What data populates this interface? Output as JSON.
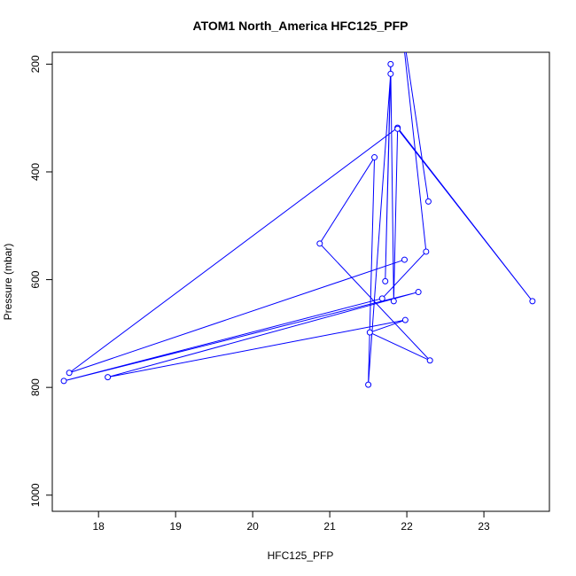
{
  "chart_data": {
    "type": "line",
    "title": "ATOM1 North_America HFC125_PFP",
    "xlabel": "HFC125_PFP",
    "ylabel": "Pressure (mbar)",
    "xlim": [
      17.4,
      23.85
    ],
    "ylim": [
      1030,
      178
    ],
    "y_reversed": true,
    "x_ticks": [
      18,
      19,
      20,
      21,
      22,
      23
    ],
    "y_ticks": [
      200,
      400,
      600,
      800,
      1000
    ],
    "grid": false,
    "legend": "none",
    "series": [
      {
        "color": "#0000ff",
        "marker": "open-circle",
        "points": [
          {
            "x": 21.97,
            "y": 563
          },
          {
            "x": 17.62,
            "y": 773
          },
          {
            "x": 21.88,
            "y": 318
          },
          {
            "x": 23.63,
            "y": 640
          },
          {
            "x": 21.88,
            "y": 320
          },
          {
            "x": 21.83,
            "y": 640
          },
          {
            "x": 21.79,
            "y": 200
          },
          {
            "x": 21.72,
            "y": 603
          },
          {
            "x": 21.79,
            "y": 218
          },
          {
            "x": 21.5,
            "y": 795
          },
          {
            "x": 21.58,
            "y": 373
          },
          {
            "x": 20.87,
            "y": 533
          },
          {
            "x": 22.3,
            "y": 750
          },
          {
            "x": 21.52,
            "y": 698
          },
          {
            "x": 21.98,
            "y": 675
          },
          {
            "x": 18.12,
            "y": 781
          },
          {
            "x": 22.15,
            "y": 623
          },
          {
            "x": 17.55,
            "y": 788
          },
          {
            "x": 21.68,
            "y": 635
          },
          {
            "x": 22.25,
            "y": 548
          },
          {
            "x": 21.92,
            "y": 110
          },
          {
            "x": 22.28,
            "y": 455
          }
        ]
      }
    ]
  }
}
